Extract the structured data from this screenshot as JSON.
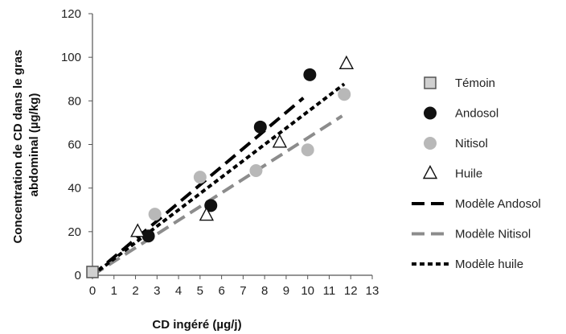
{
  "chart_data": {
    "type": "scatter",
    "xlabel": "CD ingéré (µg/j)",
    "ylabel_lines": [
      "Concentration de CD dans le gras",
      "abdominal (µg/kg)"
    ],
    "xlim": [
      0,
      13
    ],
    "ylim": [
      0,
      120
    ],
    "x_ticks": [
      "0",
      "1",
      "2",
      "3",
      "4",
      "5",
      "6",
      "7",
      "8",
      "9",
      "10",
      "11",
      "12",
      "13"
    ],
    "y_ticks": [
      "0",
      "20",
      "40",
      "60",
      "80",
      "100",
      "120"
    ],
    "grid": false,
    "legend_position": "right",
    "series": [
      {
        "name": "Témoin",
        "marker": "square",
        "color": "#d0d0d0",
        "points": [
          [
            0,
            1.5
          ]
        ]
      },
      {
        "name": "Andosol",
        "marker": "circle",
        "color": "#111111",
        "points": [
          [
            2.6,
            18
          ],
          [
            5.5,
            32
          ],
          [
            7.8,
            68
          ],
          [
            10.1,
            92
          ]
        ]
      },
      {
        "name": "Nitisol",
        "marker": "circle",
        "color": "#b8b8b8",
        "points": [
          [
            2.9,
            28
          ],
          [
            5.0,
            45
          ],
          [
            7.6,
            48
          ],
          [
            10.0,
            57.5
          ],
          [
            11.7,
            83
          ]
        ]
      },
      {
        "name": "Huile",
        "marker": "triangle",
        "color": "#ffffff",
        "points": [
          [
            2.1,
            20
          ],
          [
            5.3,
            27.5
          ],
          [
            8.7,
            61
          ],
          [
            11.8,
            97
          ]
        ]
      }
    ],
    "models": [
      {
        "name": "Modèle Andosol",
        "color": "#000000",
        "style": "long-dash",
        "x_range": [
          0,
          9.8
        ],
        "slope": 8.3,
        "intercept": 0
      },
      {
        "name": "Modèle Nitisol",
        "color": "#8c8c8c",
        "style": "long-dash",
        "x_range": [
          0,
          11.6
        ],
        "slope": 6.3,
        "intercept": 0
      },
      {
        "name": "Modèle huile",
        "color": "#000000",
        "style": "short-dash",
        "x_range": [
          0,
          11.7
        ],
        "slope": 7.5,
        "intercept": 0
      }
    ]
  }
}
